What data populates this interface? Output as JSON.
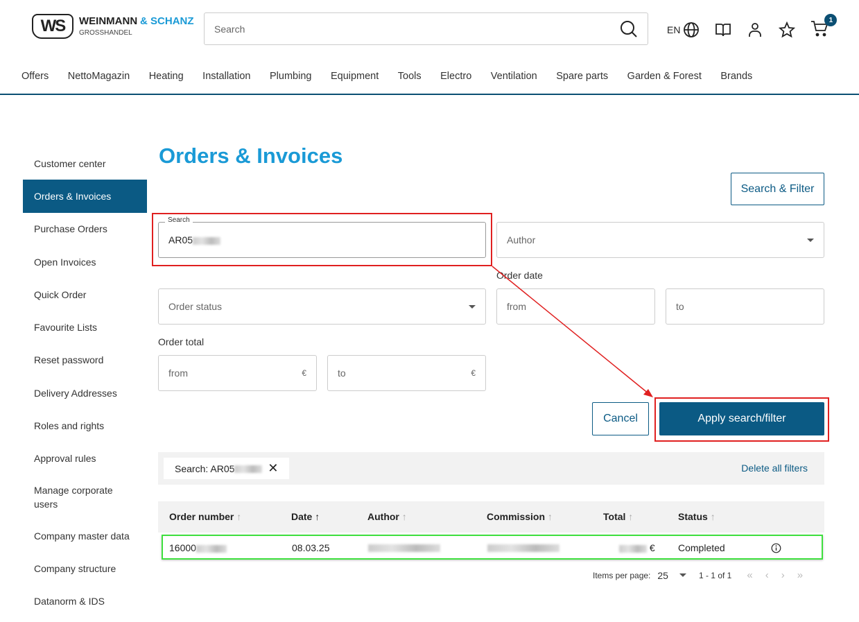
{
  "brand": {
    "logo_mark": "WS",
    "name1": "WEINMANN",
    "name2": "& SCHANZ",
    "sub": "GROSSHANDEL"
  },
  "header": {
    "search_placeholder": "Search",
    "lang": "EN",
    "cart_count": "1"
  },
  "nav": [
    "Offers",
    "NettoMagazin",
    "Heating",
    "Installation",
    "Plumbing",
    "Equipment",
    "Tools",
    "Electro",
    "Ventilation",
    "Spare parts",
    "Garden & Forest",
    "Brands"
  ],
  "sidebar": [
    "Customer center",
    "Orders & Invoices",
    "Purchase Orders",
    "Open Invoices",
    "Quick Order",
    "Favourite Lists",
    "Reset password",
    "Delivery Addresses",
    "Roles and rights",
    "Approval rules",
    "Manage corporate users",
    "Company master data",
    "Company structure",
    "Datanorm & IDS"
  ],
  "page": {
    "title": "Orders & Invoices",
    "search_filter_button": "Search & Filter"
  },
  "filters": {
    "search_label": "Search",
    "search_value": "AR05",
    "author_placeholder": "Author",
    "order_status_placeholder": "Order status",
    "order_date_label": "Order date",
    "from": "from",
    "to": "to",
    "order_total_label": "Order total",
    "currency": "€",
    "cancel": "Cancel",
    "apply": "Apply search/filter"
  },
  "active_filters": {
    "chip": "Search: AR05",
    "delete_all": "Delete all filters"
  },
  "table": {
    "headers": [
      "Order number",
      "Date",
      "Author",
      "Commission",
      "Total",
      "Status"
    ],
    "rows": [
      {
        "order_number": "16000",
        "date": "08.03.25",
        "total_currency": "€",
        "status": "Completed"
      }
    ]
  },
  "pagination": {
    "items_per_page_label": "Items per page:",
    "items_per_page": "25",
    "range": "1 - 1 of 1"
  },
  "colors": {
    "brand_blue": "#0b5a84",
    "title_blue": "#1a9ad6",
    "highlight_red": "#e02020",
    "highlight_green": "#3ee03e"
  }
}
